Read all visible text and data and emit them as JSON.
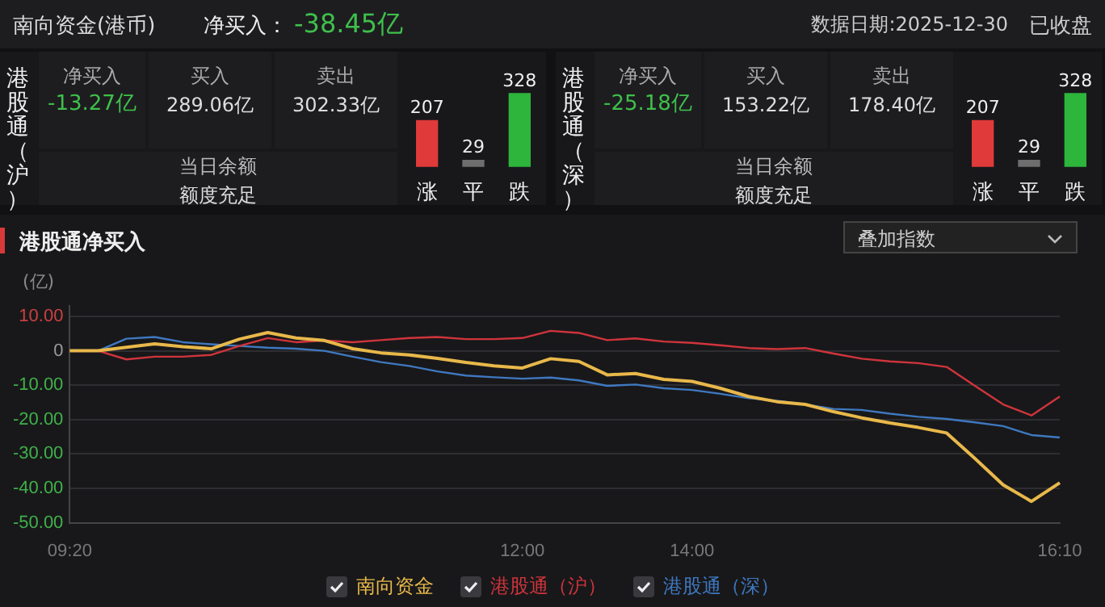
{
  "chart_data": [
    {
      "type": "other",
      "title": "南向资金(港币)",
      "annotations": [
        "净买入：",
        "-38.45亿",
        "数据日期:2025-12-30",
        "已收盘"
      ]
    },
    {
      "type": "bar",
      "annotations": [
        "港股通（沪）",
        "净买入",
        "-13.27亿",
        "买入",
        "289.06亿",
        "卖出",
        "302.33亿",
        "当日余额",
        "额度充足"
      ],
      "categories": [
        "涨",
        "平",
        "跌"
      ],
      "values": [
        207,
        29,
        328
      ],
      "colors": [
        "#e03a3a",
        "#6e6e6e",
        "#2db53c"
      ],
      "data_labels": true
    },
    {
      "type": "bar",
      "annotations": [
        "港股通（深）",
        "净买入",
        "-25.18亿",
        "买入",
        "153.22亿",
        "卖出",
        "178.40亿",
        "当日余额",
        "额度充足"
      ],
      "categories": [
        "涨",
        "平",
        "跌"
      ],
      "values": [
        207,
        29,
        328
      ],
      "colors": [
        "#e03a3a",
        "#6e6e6e",
        "#2db53c"
      ],
      "data_labels": true
    },
    {
      "type": "line",
      "title": "港股通净买入",
      "ylabel": "(亿)",
      "annotations": [
        "叠加指数"
      ],
      "categories": [
        "09:20",
        null,
        null,
        null,
        null,
        null,
        null,
        null,
        null,
        null,
        null,
        null,
        null,
        null,
        null,
        null,
        "12:00",
        null,
        null,
        null,
        null,
        null,
        "14:00",
        null,
        null,
        null,
        null,
        null,
        null,
        null,
        null,
        null,
        null,
        null,
        null,
        "16:10"
      ],
      "series": [
        {
          "name": "南向资金",
          "color": "#e8b84a",
          "values": [
            0,
            0,
            1,
            2,
            1.2,
            0.6,
            3.4,
            5.3,
            3.7,
            3,
            0.6,
            -0.6,
            -1.2,
            -2.2,
            -3.4,
            -4.4,
            -5,
            -2.3,
            -3.1,
            -7,
            -6.6,
            -8.3,
            -8.9,
            -10.9,
            -13.3,
            -14.8,
            -15.6,
            -17.7,
            -19.5,
            -21,
            -22.3,
            -23.9,
            -31.3,
            -39,
            -43.8,
            -38.4
          ]
        },
        {
          "name": "港股通（沪）",
          "color": "#d0343c",
          "values": [
            0,
            0,
            -2.5,
            -1.7,
            -1.7,
            -1.2,
            1.4,
            3.7,
            2.5,
            3,
            2.5,
            3.1,
            3.7,
            4,
            3.4,
            3.4,
            3.7,
            5.8,
            5.2,
            3.1,
            3.6,
            2.7,
            2.3,
            1.6,
            0.8,
            0.5,
            0.8,
            -0.8,
            -2.3,
            -3.1,
            -3.6,
            -4.7,
            -10.2,
            -15.6,
            -18.8,
            -13.3
          ]
        },
        {
          "name": "港股通（深）",
          "color": "#3f78c0",
          "values": [
            0,
            0,
            3.5,
            4,
            2.5,
            1.9,
            1.4,
            0.9,
            0.6,
            0,
            -1.7,
            -3.3,
            -4.4,
            -6,
            -7.2,
            -7.7,
            -8.1,
            -7.8,
            -8.6,
            -10.2,
            -9.8,
            -10.9,
            -11.4,
            -12.5,
            -13.8,
            -14.5,
            -15.6,
            -16.9,
            -17.2,
            -18.3,
            -19.2,
            -19.8,
            -20.8,
            -21.9,
            -24.5,
            -25.2
          ]
        }
      ],
      "ylim": [
        -50,
        13
      ],
      "yticks": [
        {
          "value": 10,
          "label": "10.00"
        },
        0,
        {
          "value": -10,
          "label": "-10.00"
        },
        {
          "value": -20,
          "label": "-20.00"
        },
        {
          "value": -30,
          "label": "-30.00"
        },
        {
          "value": -40,
          "label": "-40.00"
        },
        {
          "value": -50,
          "label": "-50.00"
        }
      ],
      "grid": "y",
      "legend": "bottom",
      "marker": "none",
      "line_style": "solid"
    }
  ]
}
